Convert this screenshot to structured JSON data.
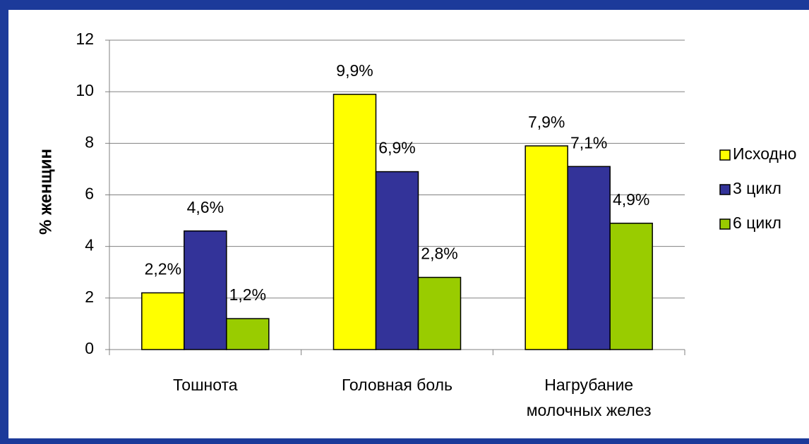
{
  "chart_data": {
    "type": "bar",
    "y_label": "% женщин",
    "categories": [
      "Тошнота",
      "Головная боль",
      "Нагрубание\nмолочных желез"
    ],
    "series": [
      {
        "name": "Исходно",
        "color": "#ffff00",
        "values": [
          2.2,
          9.9,
          7.9
        ],
        "value_labels": [
          "2,2%",
          "9,9%",
          "7,9%"
        ]
      },
      {
        "name": "3 цикл",
        "color": "#333399",
        "values": [
          4.6,
          6.9,
          7.1
        ],
        "value_labels": [
          "4,6%",
          "6,9%",
          "7,1%"
        ]
      },
      {
        "name": "6 цикл",
        "color": "#99cc00",
        "values": [
          1.2,
          2.8,
          4.9
        ],
        "value_labels": [
          "1,2%",
          "2,8%",
          "4,9%"
        ]
      }
    ],
    "ylim": [
      0,
      12
    ],
    "yticks": [
      0,
      2,
      4,
      6,
      8,
      10,
      12
    ],
    "grid": true,
    "legend": "right"
  }
}
